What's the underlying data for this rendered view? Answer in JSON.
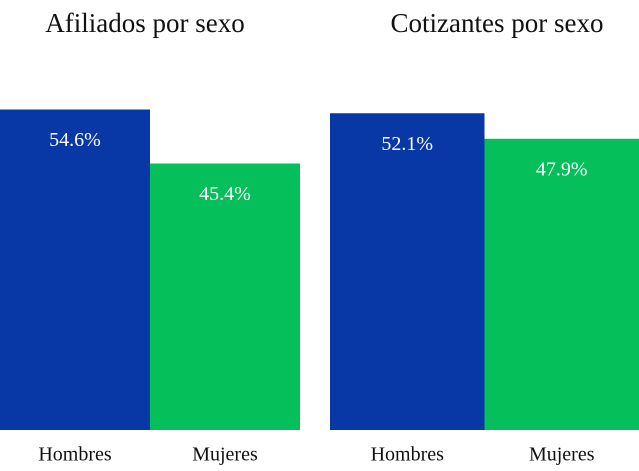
{
  "chart_data": [
    {
      "type": "bar",
      "title": "Afiliados por sexo",
      "categories": [
        "Hombres",
        "Mujeres"
      ],
      "values": [
        54.6,
        45.4
      ],
      "value_labels": [
        "54.6%",
        "45.4%"
      ],
      "colors": [
        "#0838a6",
        "#05bf5b"
      ]
    },
    {
      "type": "bar",
      "title": "Cotizantes por sexo",
      "categories": [
        "Hombres",
        "Mujeres"
      ],
      "values": [
        52.1,
        47.9
      ],
      "value_labels": [
        "52.1%",
        "47.9%"
      ],
      "colors": [
        "#0838a6",
        "#05bf5b"
      ]
    }
  ]
}
